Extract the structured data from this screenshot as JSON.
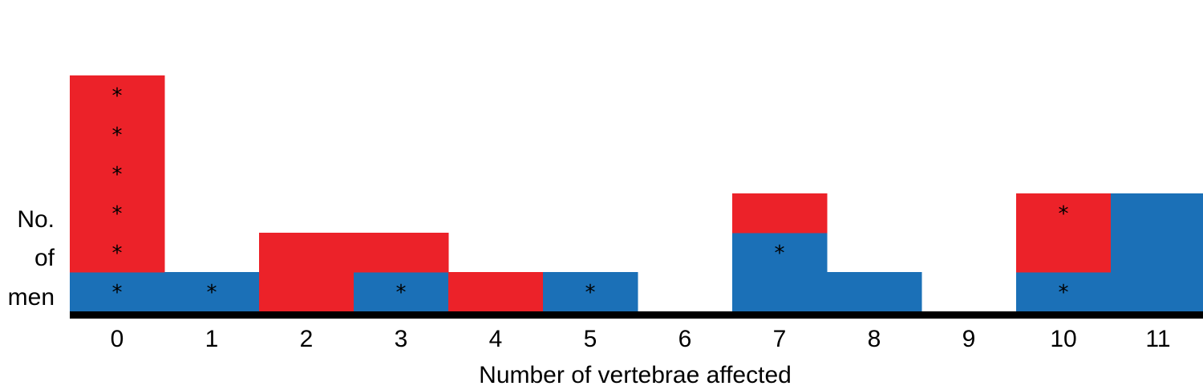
{
  "chart_data": {
    "type": "bar",
    "subtype": "stacked-cells",
    "xlabel": "Number of vertebrae affected",
    "ylabel_lines": [
      "No.",
      "of",
      "men"
    ],
    "categories": [
      "0",
      "1",
      "2",
      "3",
      "4",
      "5",
      "6",
      "7",
      "8",
      "9",
      "10",
      "11"
    ],
    "marker": "*",
    "colors": {
      "blue": "#1B70B7",
      "red": "#EC2229",
      "axis": "#000000"
    },
    "stacks": [
      [
        {
          "color": "blue",
          "star": true
        },
        {
          "color": "red",
          "star": true
        },
        {
          "color": "red",
          "star": true
        },
        {
          "color": "red",
          "star": true
        },
        {
          "color": "red",
          "star": true
        },
        {
          "color": "red",
          "star": true
        }
      ],
      [
        {
          "color": "blue",
          "star": true
        }
      ],
      [
        {
          "color": "red",
          "star": false
        },
        {
          "color": "red",
          "star": false
        }
      ],
      [
        {
          "color": "blue",
          "star": true
        },
        {
          "color": "red",
          "star": false
        }
      ],
      [
        {
          "color": "red",
          "star": false
        }
      ],
      [
        {
          "color": "blue",
          "star": true
        }
      ],
      [],
      [
        {
          "color": "blue",
          "star": false
        },
        {
          "color": "blue",
          "star": true
        },
        {
          "color": "red",
          "star": false
        }
      ],
      [
        {
          "color": "blue",
          "star": false
        }
      ],
      [],
      [
        {
          "color": "blue",
          "star": true
        },
        {
          "color": "red",
          "star": false
        },
        {
          "color": "red",
          "star": true
        }
      ],
      [
        {
          "color": "blue",
          "star": false
        },
        {
          "color": "blue",
          "star": false
        },
        {
          "color": "blue",
          "star": false
        }
      ]
    ]
  }
}
